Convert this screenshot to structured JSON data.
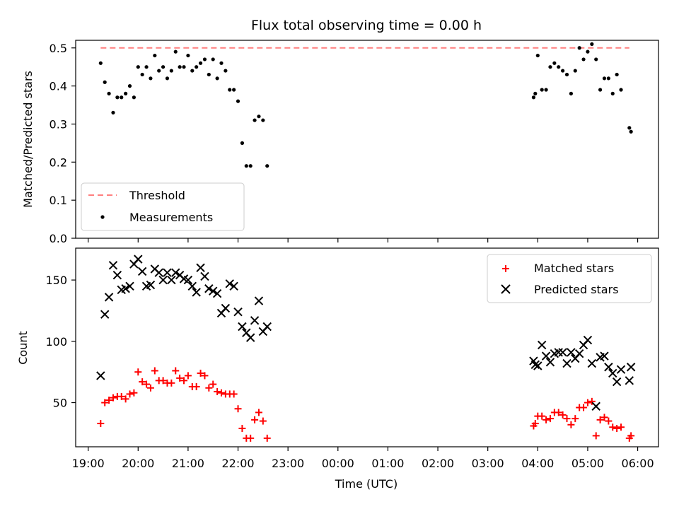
{
  "chart_data": [
    {
      "type": "scatter",
      "title": "Flux total observing time = 0.00 h",
      "xlabel": "",
      "ylabel": "Matched/Predicted stars",
      "ylim": [
        0,
        0.52
      ],
      "yticks": [
        "0.0",
        "0.1",
        "0.2",
        "0.3",
        "0.4",
        "0.5"
      ],
      "legend_position": "lower-left",
      "threshold": {
        "name": "Threshold",
        "value": 0.5,
        "x_start": "19:15",
        "x_end": "05:50",
        "color": "#ff7f7f"
      },
      "series": [
        {
          "name": "Measurements",
          "color": "#000000",
          "marker": "dot",
          "points": [
            [
              "19:15",
              0.46
            ],
            [
              "19:20",
              0.41
            ],
            [
              "19:25",
              0.38
            ],
            [
              "19:30",
              0.33
            ],
            [
              "19:35",
              0.37
            ],
            [
              "19:40",
              0.37
            ],
            [
              "19:45",
              0.38
            ],
            [
              "19:50",
              0.4
            ],
            [
              "19:55",
              0.37
            ],
            [
              "20:00",
              0.45
            ],
            [
              "20:05",
              0.43
            ],
            [
              "20:10",
              0.45
            ],
            [
              "20:15",
              0.42
            ],
            [
              "20:20",
              0.48
            ],
            [
              "20:25",
              0.44
            ],
            [
              "20:30",
              0.45
            ],
            [
              "20:35",
              0.42
            ],
            [
              "20:40",
              0.44
            ],
            [
              "20:45",
              0.49
            ],
            [
              "20:50",
              0.45
            ],
            [
              "20:55",
              0.45
            ],
            [
              "21:00",
              0.48
            ],
            [
              "21:05",
              0.44
            ],
            [
              "21:10",
              0.45
            ],
            [
              "21:15",
              0.46
            ],
            [
              "21:20",
              0.47
            ],
            [
              "21:25",
              0.43
            ],
            [
              "21:30",
              0.47
            ],
            [
              "21:35",
              0.42
            ],
            [
              "21:40",
              0.46
            ],
            [
              "21:45",
              0.44
            ],
            [
              "21:50",
              0.39
            ],
            [
              "21:55",
              0.39
            ],
            [
              "22:00",
              0.36
            ],
            [
              "22:05",
              0.25
            ],
            [
              "22:10",
              0.19
            ],
            [
              "22:15",
              0.19
            ],
            [
              "22:20",
              0.31
            ],
            [
              "22:25",
              0.32
            ],
            [
              "22:30",
              0.31
            ],
            [
              "22:35",
              0.19
            ],
            [
              "03:55",
              0.37
            ],
            [
              "03:57",
              0.38
            ],
            [
              "04:00",
              0.48
            ],
            [
              "04:05",
              0.39
            ],
            [
              "04:10",
              0.39
            ],
            [
              "04:15",
              0.45
            ],
            [
              "04:20",
              0.46
            ],
            [
              "04:25",
              0.45
            ],
            [
              "04:30",
              0.44
            ],
            [
              "04:35",
              0.43
            ],
            [
              "04:40",
              0.38
            ],
            [
              "04:45",
              0.44
            ],
            [
              "04:50",
              0.5
            ],
            [
              "04:55",
              0.47
            ],
            [
              "05:00",
              0.49
            ],
            [
              "05:05",
              0.51
            ],
            [
              "05:10",
              0.47
            ],
            [
              "05:15",
              0.39
            ],
            [
              "05:20",
              0.42
            ],
            [
              "05:25",
              0.42
            ],
            [
              "05:30",
              0.38
            ],
            [
              "05:35",
              0.43
            ],
            [
              "05:40",
              0.39
            ],
            [
              "05:50",
              0.29
            ],
            [
              "05:52",
              0.28
            ]
          ]
        }
      ]
    },
    {
      "type": "scatter",
      "title": "",
      "xlabel": "Time (UTC)",
      "ylabel": "Count",
      "ylim": [
        14,
        176
      ],
      "yticks": [
        "50",
        "100",
        "150"
      ],
      "xticks": [
        "19:00",
        "20:00",
        "21:00",
        "22:00",
        "23:00",
        "00:00",
        "01:00",
        "02:00",
        "03:00",
        "04:00",
        "05:00",
        "06:00"
      ],
      "legend_position": "upper-right",
      "series": [
        {
          "name": "Matched stars",
          "color": "#ff0000",
          "marker": "plus",
          "points": [
            [
              "19:15",
              33
            ],
            [
              "19:20",
              50
            ],
            [
              "19:25",
              52
            ],
            [
              "19:30",
              54
            ],
            [
              "19:35",
              55
            ],
            [
              "19:40",
              55
            ],
            [
              "19:45",
              53
            ],
            [
              "19:50",
              57
            ],
            [
              "19:55",
              58
            ],
            [
              "20:00",
              75
            ],
            [
              "20:05",
              67
            ],
            [
              "20:10",
              65
            ],
            [
              "20:15",
              62
            ],
            [
              "20:20",
              76
            ],
            [
              "20:25",
              68
            ],
            [
              "20:30",
              68
            ],
            [
              "20:35",
              66
            ],
            [
              "20:40",
              66
            ],
            [
              "20:45",
              76
            ],
            [
              "20:50",
              70
            ],
            [
              "20:55",
              68
            ],
            [
              "21:00",
              72
            ],
            [
              "21:05",
              63
            ],
            [
              "21:10",
              63
            ],
            [
              "21:15",
              74
            ],
            [
              "21:20",
              72
            ],
            [
              "21:25",
              62
            ],
            [
              "21:30",
              65
            ],
            [
              "21:35",
              59
            ],
            [
              "21:40",
              58
            ],
            [
              "21:45",
              57
            ],
            [
              "21:50",
              57
            ],
            [
              "21:55",
              57
            ],
            [
              "22:00",
              45
            ],
            [
              "22:05",
              29
            ],
            [
              "22:10",
              21
            ],
            [
              "22:15",
              21
            ],
            [
              "22:20",
              36
            ],
            [
              "22:25",
              42
            ],
            [
              "22:30",
              35
            ],
            [
              "22:35",
              21
            ],
            [
              "03:55",
              31
            ],
            [
              "03:57",
              33
            ],
            [
              "04:00",
              39
            ],
            [
              "04:05",
              39
            ],
            [
              "04:10",
              36
            ],
            [
              "04:15",
              37
            ],
            [
              "04:20",
              42
            ],
            [
              "04:25",
              42
            ],
            [
              "04:30",
              40
            ],
            [
              "04:35",
              37
            ],
            [
              "04:40",
              32
            ],
            [
              "04:45",
              37
            ],
            [
              "04:50",
              46
            ],
            [
              "04:55",
              46
            ],
            [
              "05:00",
              50
            ],
            [
              "05:05",
              51
            ],
            [
              "05:10",
              23
            ],
            [
              "05:15",
              36
            ],
            [
              "05:20",
              38
            ],
            [
              "05:25",
              35
            ],
            [
              "05:30",
              30
            ],
            [
              "05:35",
              29
            ],
            [
              "05:40",
              30
            ],
            [
              "05:50",
              21
            ],
            [
              "05:52",
              23
            ]
          ]
        },
        {
          "name": "Predicted stars",
          "color": "#000000",
          "marker": "x",
          "points": [
            [
              "19:15",
              72
            ],
            [
              "19:20",
              122
            ],
            [
              "19:25",
              136
            ],
            [
              "19:30",
              162
            ],
            [
              "19:35",
              154
            ],
            [
              "19:40",
              142
            ],
            [
              "19:45",
              143
            ],
            [
              "19:50",
              145
            ],
            [
              "19:55",
              163
            ],
            [
              "20:00",
              167
            ],
            [
              "20:05",
              157
            ],
            [
              "20:10",
              145
            ],
            [
              "20:15",
              146
            ],
            [
              "20:20",
              159
            ],
            [
              "20:25",
              156
            ],
            [
              "20:30",
              150
            ],
            [
              "20:35",
              156
            ],
            [
              "20:40",
              150
            ],
            [
              "20:45",
              156
            ],
            [
              "20:50",
              154
            ],
            [
              "20:55",
              151
            ],
            [
              "21:00",
              150
            ],
            [
              "21:05",
              145
            ],
            [
              "21:10",
              140
            ],
            [
              "21:15",
              160
            ],
            [
              "21:20",
              153
            ],
            [
              "21:25",
              143
            ],
            [
              "21:30",
              141
            ],
            [
              "21:35",
              139
            ],
            [
              "21:40",
              123
            ],
            [
              "21:45",
              127
            ],
            [
              "21:50",
              147
            ],
            [
              "21:55",
              145
            ],
            [
              "22:00",
              124
            ],
            [
              "22:05",
              112
            ],
            [
              "22:10",
              107
            ],
            [
              "22:15",
              103
            ],
            [
              "22:20",
              117
            ],
            [
              "22:25",
              133
            ],
            [
              "22:30",
              108
            ],
            [
              "22:35",
              112
            ],
            [
              "03:55",
              84
            ],
            [
              "03:57",
              81
            ],
            [
              "04:00",
              80
            ],
            [
              "04:05",
              97
            ],
            [
              "04:10",
              88
            ],
            [
              "04:15",
              83
            ],
            [
              "04:20",
              90
            ],
            [
              "04:25",
              91
            ],
            [
              "04:30",
              91
            ],
            [
              "04:35",
              82
            ],
            [
              "04:40",
              91
            ],
            [
              "04:45",
              86
            ],
            [
              "04:50",
              90
            ],
            [
              "04:55",
              97
            ],
            [
              "05:00",
              101
            ],
            [
              "05:05",
              82
            ],
            [
              "05:10",
              47
            ],
            [
              "05:15",
              87
            ],
            [
              "05:20",
              88
            ],
            [
              "05:25",
              79
            ],
            [
              "05:30",
              74
            ],
            [
              "05:35",
              67
            ],
            [
              "05:40",
              77
            ],
            [
              "05:50",
              68
            ],
            [
              "05:52",
              79
            ]
          ]
        }
      ]
    }
  ]
}
